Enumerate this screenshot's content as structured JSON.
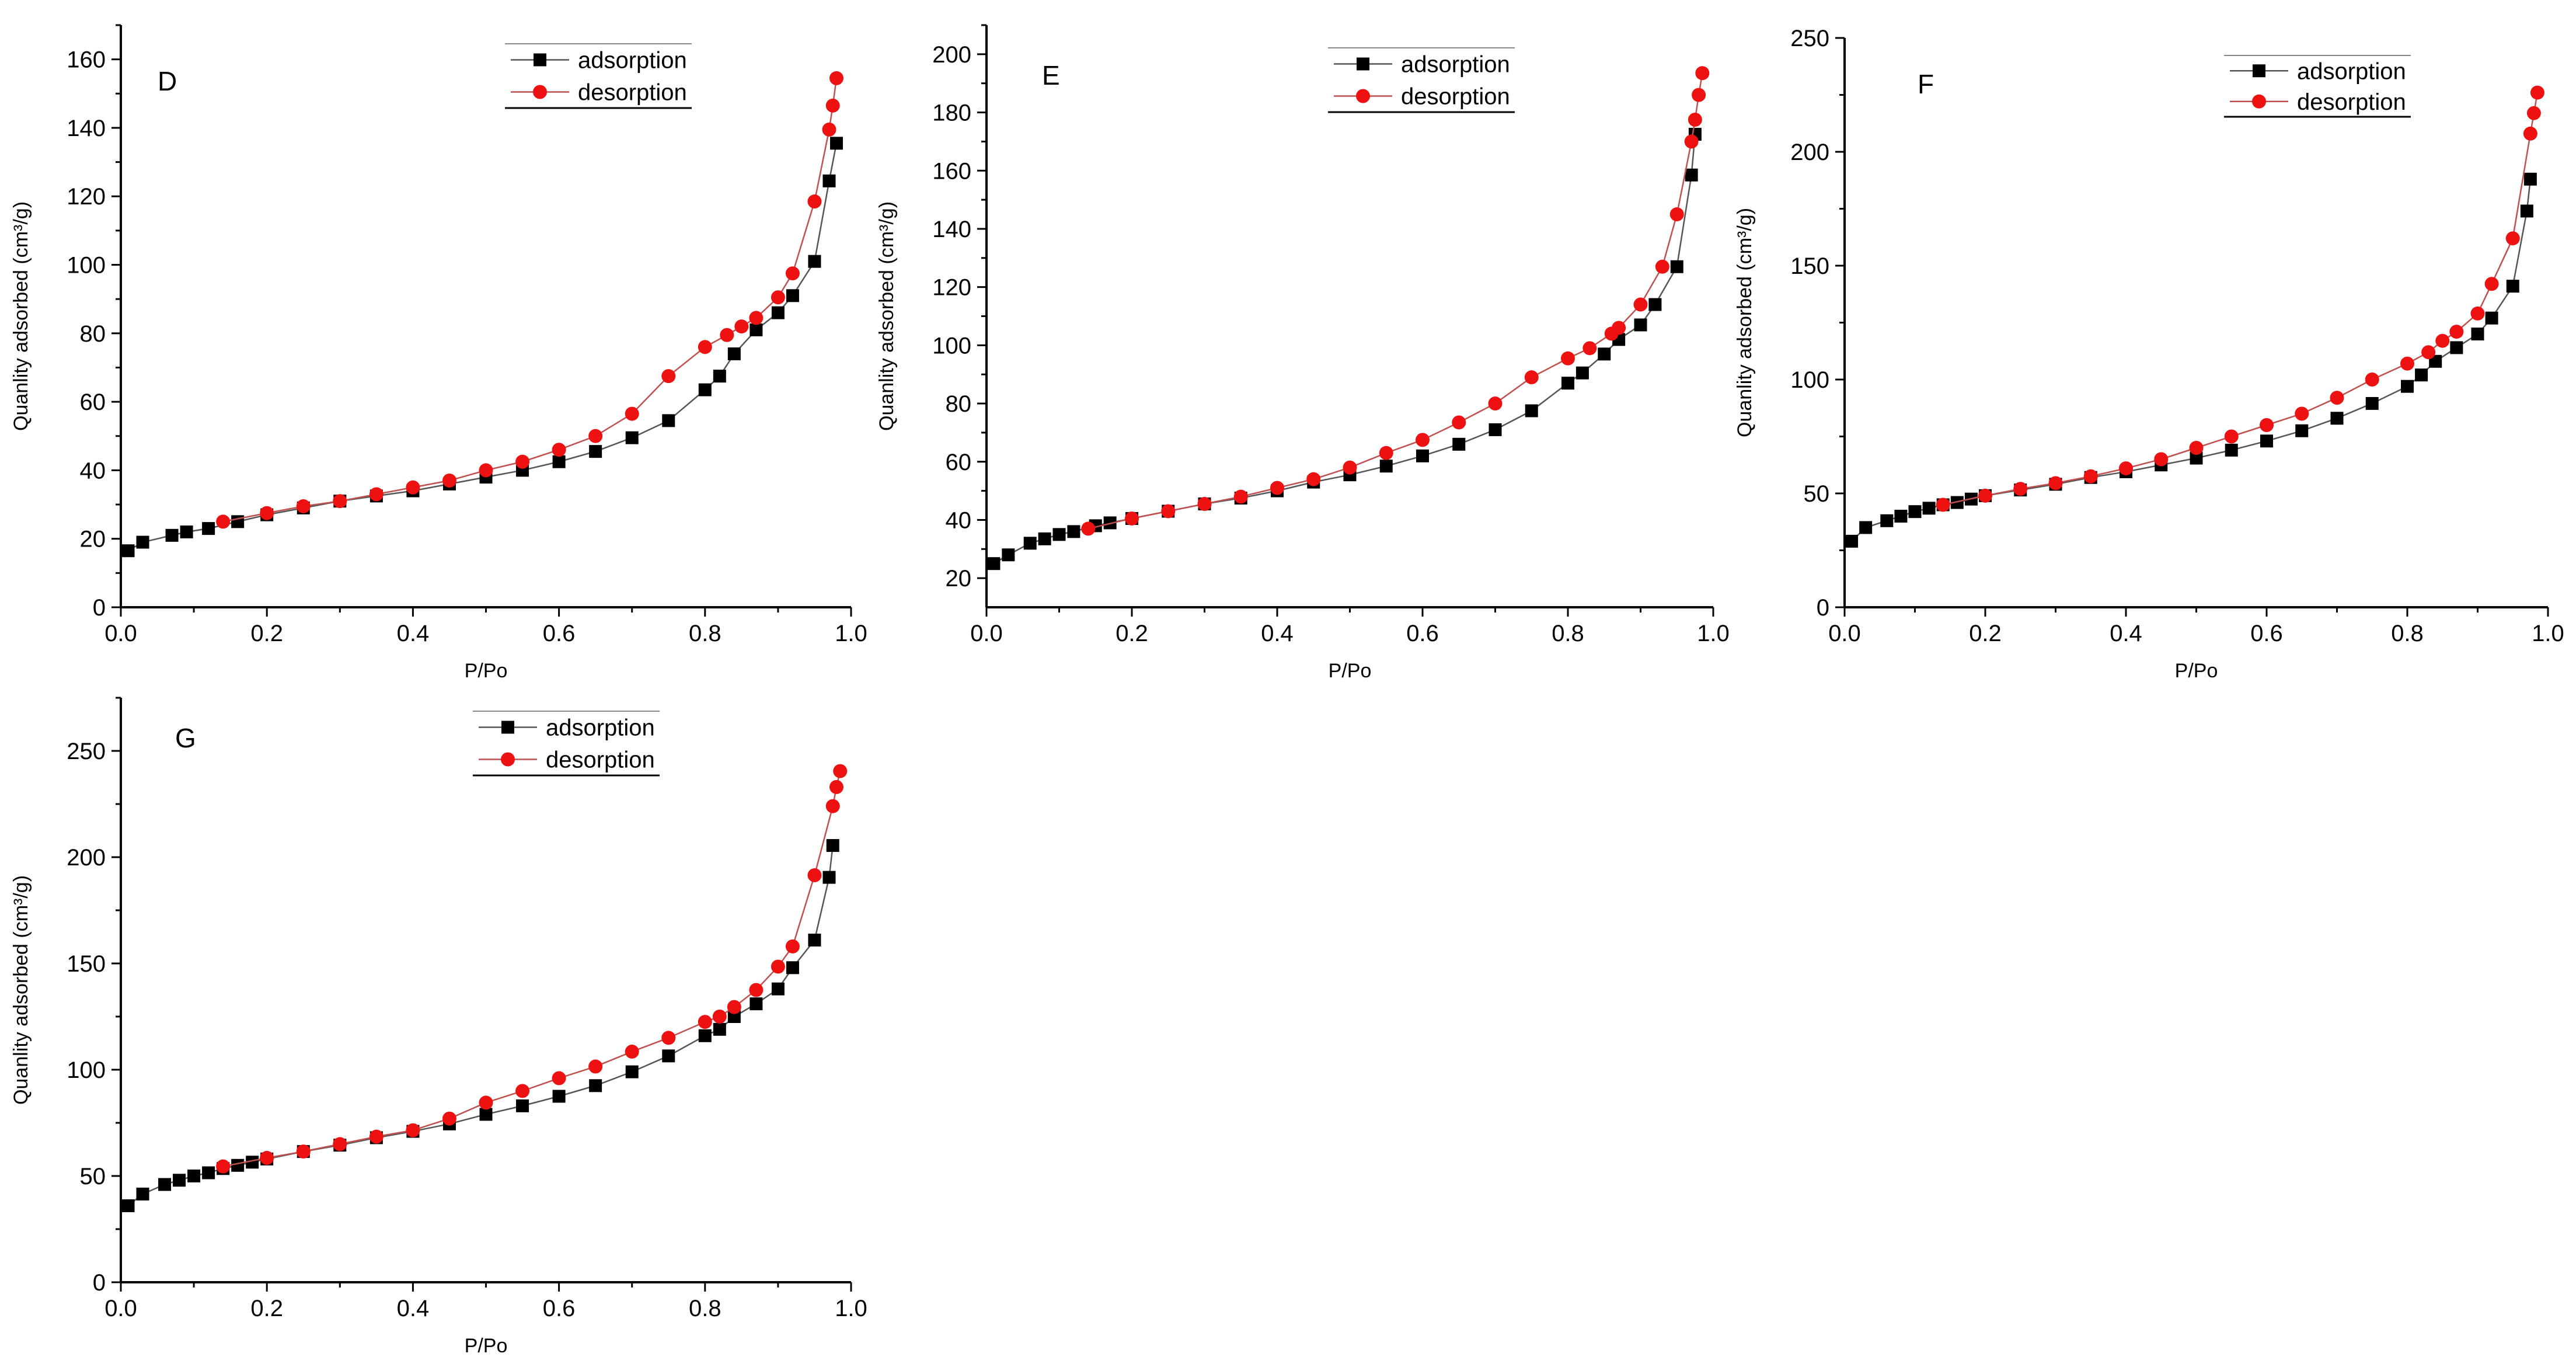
{
  "colors": {
    "adsorption": "#000000",
    "desorption": "#ee1111",
    "adsorption_line": "#555555",
    "desorption_line": "#c05050"
  },
  "chart_data": [
    {
      "type": "line",
      "panel_label": "D",
      "xlabel": "P/Po",
      "ylabel": "Quanlity adsorbed (cm³/g)",
      "xlim": [
        0,
        1.0
      ],
      "ylim": [
        0,
        170
      ],
      "xticks": [
        0.0,
        0.2,
        0.4,
        0.6,
        0.8,
        1.0
      ],
      "yticks": [
        0,
        20,
        40,
        60,
        80,
        100,
        120,
        140,
        160
      ],
      "xtick_labels": [
        "0.0",
        "0.2",
        "0.4",
        "0.6",
        "0.8",
        "1.0"
      ],
      "ytick_labels": [
        "0",
        "20",
        "40",
        "60",
        "80",
        "100",
        "120",
        "140",
        "160"
      ],
      "legend": [
        "adsorption",
        "desorption"
      ],
      "series": [
        {
          "name": "adsorption",
          "marker": "square",
          "x": [
            0.01,
            0.03,
            0.07,
            0.09,
            0.12,
            0.16,
            0.2,
            0.25,
            0.3,
            0.35,
            0.4,
            0.45,
            0.5,
            0.55,
            0.6,
            0.65,
            0.7,
            0.75,
            0.8,
            0.82,
            0.84,
            0.87,
            0.9,
            0.92,
            0.95,
            0.97,
            0.98
          ],
          "y": [
            16.5,
            19,
            21,
            22,
            23,
            25,
            27,
            29,
            31,
            32.5,
            34,
            36,
            38,
            40,
            42.5,
            45.5,
            49.5,
            54.5,
            63.5,
            67.5,
            74,
            81,
            86,
            91,
            101,
            124.5,
            135.5
          ]
        },
        {
          "name": "desorption",
          "marker": "circle",
          "x": [
            0.98,
            0.975,
            0.97,
            0.95,
            0.92,
            0.9,
            0.87,
            0.85,
            0.83,
            0.8,
            0.75,
            0.7,
            0.65,
            0.6,
            0.55,
            0.5,
            0.45,
            0.4,
            0.35,
            0.3,
            0.25,
            0.2,
            0.14
          ],
          "y": [
            154.5,
            146.5,
            139.5,
            118.5,
            97.5,
            90.5,
            84.5,
            82,
            79.5,
            76,
            67.5,
            56.5,
            50,
            46,
            42.5,
            40,
            37,
            35,
            33,
            31,
            29.5,
            27.5,
            25
          ]
        }
      ]
    },
    {
      "type": "line",
      "panel_label": "E",
      "xlabel": "P/Po",
      "ylabel": "Quanlity adsorbed (cm³/g)",
      "xlim": [
        0,
        1.0
      ],
      "ylim": [
        10,
        210
      ],
      "xticks": [
        0.0,
        0.2,
        0.4,
        0.6,
        0.8,
        1.0
      ],
      "yticks": [
        20,
        40,
        60,
        80,
        100,
        120,
        140,
        160,
        180,
        200
      ],
      "xtick_labels": [
        "0.0",
        "0.2",
        "0.4",
        "0.6",
        "0.8",
        "1.0"
      ],
      "ytick_labels": [
        "20",
        "40",
        "60",
        "80",
        "100",
        "120",
        "140",
        "160",
        "180",
        "200"
      ],
      "legend": [
        "adsorption",
        "desorption"
      ],
      "series": [
        {
          "name": "adsorption",
          "marker": "square",
          "x": [
            0.01,
            0.03,
            0.06,
            0.08,
            0.1,
            0.12,
            0.15,
            0.17,
            0.2,
            0.25,
            0.3,
            0.35,
            0.4,
            0.45,
            0.5,
            0.55,
            0.6,
            0.65,
            0.7,
            0.75,
            0.8,
            0.82,
            0.85,
            0.87,
            0.9,
            0.92,
            0.95,
            0.97,
            0.975
          ],
          "y": [
            25,
            28,
            32,
            33.5,
            35,
            36,
            38,
            39,
            40.5,
            43,
            45.5,
            47.5,
            50,
            53,
            55.5,
            58.5,
            62,
            66,
            71,
            77.5,
            87,
            90.5,
            97,
            102,
            107,
            114,
            127,
            158.5,
            172.5
          ]
        },
        {
          "name": "desorption",
          "marker": "circle",
          "x": [
            0.985,
            0.98,
            0.975,
            0.97,
            0.95,
            0.93,
            0.9,
            0.87,
            0.86,
            0.83,
            0.8,
            0.75,
            0.7,
            0.65,
            0.6,
            0.55,
            0.5,
            0.45,
            0.4,
            0.35,
            0.3,
            0.25,
            0.2,
            0.14
          ],
          "y": [
            193.5,
            186,
            177.5,
            170,
            145,
            127,
            114,
            106,
            104,
            99,
            95.5,
            89,
            80,
            73.5,
            67.5,
            63,
            58,
            54,
            51,
            48,
            45.5,
            43,
            40.5,
            37
          ]
        }
      ]
    },
    {
      "type": "line",
      "panel_label": "F",
      "xlabel": "P/Po",
      "ylabel": "Quanlity adsorbed (cm³/g)",
      "xlim": [
        0,
        1.0
      ],
      "ylim": [
        0,
        250
      ],
      "xticks": [
        0.0,
        0.2,
        0.4,
        0.6,
        0.8,
        1.0
      ],
      "yticks": [
        0,
        50,
        100,
        150,
        200,
        250
      ],
      "xtick_labels": [
        "0.0",
        "0.2",
        "0.4",
        "0.6",
        "0.8",
        "1.0"
      ],
      "ytick_labels": [
        "0",
        "50",
        "100",
        "150",
        "200",
        "250"
      ],
      "legend": [
        "adsorption",
        "desorption"
      ],
      "series": [
        {
          "name": "adsorption",
          "marker": "square",
          "x": [
            0.01,
            0.03,
            0.06,
            0.08,
            0.1,
            0.12,
            0.14,
            0.16,
            0.18,
            0.2,
            0.25,
            0.3,
            0.35,
            0.4,
            0.45,
            0.5,
            0.55,
            0.6,
            0.65,
            0.7,
            0.75,
            0.8,
            0.82,
            0.84,
            0.87,
            0.9,
            0.92,
            0.95,
            0.97,
            0.975
          ],
          "y": [
            29,
            35,
            38,
            40,
            42,
            43.5,
            45,
            46,
            47.5,
            49,
            51.5,
            54,
            57,
            59.5,
            62.5,
            65.5,
            69,
            73,
            77.5,
            83,
            89.5,
            97,
            102,
            108,
            114,
            120,
            127,
            141,
            174,
            188
          ]
        },
        {
          "name": "desorption",
          "marker": "circle",
          "x": [
            0.985,
            0.98,
            0.975,
            0.95,
            0.92,
            0.9,
            0.87,
            0.85,
            0.83,
            0.8,
            0.75,
            0.7,
            0.65,
            0.6,
            0.55,
            0.5,
            0.45,
            0.4,
            0.35,
            0.3,
            0.25,
            0.2,
            0.14
          ],
          "y": [
            226,
            217,
            208,
            162,
            142,
            129,
            121,
            117,
            112,
            107,
            100,
            92,
            85,
            80,
            75,
            70,
            65,
            61,
            57.5,
            54.5,
            52,
            49,
            45
          ]
        }
      ]
    },
    {
      "type": "line",
      "panel_label": "G",
      "xlabel": "P/Po",
      "ylabel": "Quanlity adsorbed (cm³/g)",
      "xlim": [
        0,
        1.0
      ],
      "ylim": [
        0,
        275
      ],
      "xticks": [
        0.0,
        0.2,
        0.4,
        0.6,
        0.8,
        1.0
      ],
      "yticks": [
        0,
        50,
        100,
        150,
        200,
        250
      ],
      "xtick_labels": [
        "0.0",
        "0.2",
        "0.4",
        "0.6",
        "0.8",
        "1.0"
      ],
      "ytick_labels": [
        "0",
        "50",
        "100",
        "150",
        "200",
        "250"
      ],
      "legend": [
        "adsorption",
        "desorption"
      ],
      "series": [
        {
          "name": "adsorption",
          "marker": "square",
          "x": [
            0.01,
            0.03,
            0.06,
            0.08,
            0.1,
            0.12,
            0.14,
            0.16,
            0.18,
            0.2,
            0.25,
            0.3,
            0.35,
            0.4,
            0.45,
            0.5,
            0.55,
            0.6,
            0.65,
            0.7,
            0.75,
            0.8,
            0.82,
            0.84,
            0.87,
            0.9,
            0.92,
            0.95,
            0.97,
            0.975
          ],
          "y": [
            36,
            41.5,
            46,
            48,
            50,
            51.5,
            53.5,
            55,
            56.5,
            58,
            61.5,
            64.5,
            68,
            71,
            74.5,
            79,
            83,
            87.5,
            92.5,
            99,
            106.5,
            116,
            119,
            125,
            131,
            138,
            148,
            161,
            190.5,
            205.5
          ]
        },
        {
          "name": "desorption",
          "marker": "circle",
          "x": [
            0.985,
            0.98,
            0.975,
            0.95,
            0.92,
            0.9,
            0.87,
            0.84,
            0.82,
            0.8,
            0.75,
            0.7,
            0.65,
            0.6,
            0.55,
            0.5,
            0.45,
            0.4,
            0.35,
            0.3,
            0.25,
            0.2,
            0.14
          ],
          "y": [
            240.5,
            233,
            224,
            191.5,
            158,
            148.5,
            137.5,
            129.5,
            125,
            122.5,
            115,
            108.5,
            101.5,
            96,
            90,
            84.5,
            77,
            71.5,
            68.5,
            65,
            61.5,
            58.5,
            54.5
          ]
        }
      ]
    }
  ]
}
